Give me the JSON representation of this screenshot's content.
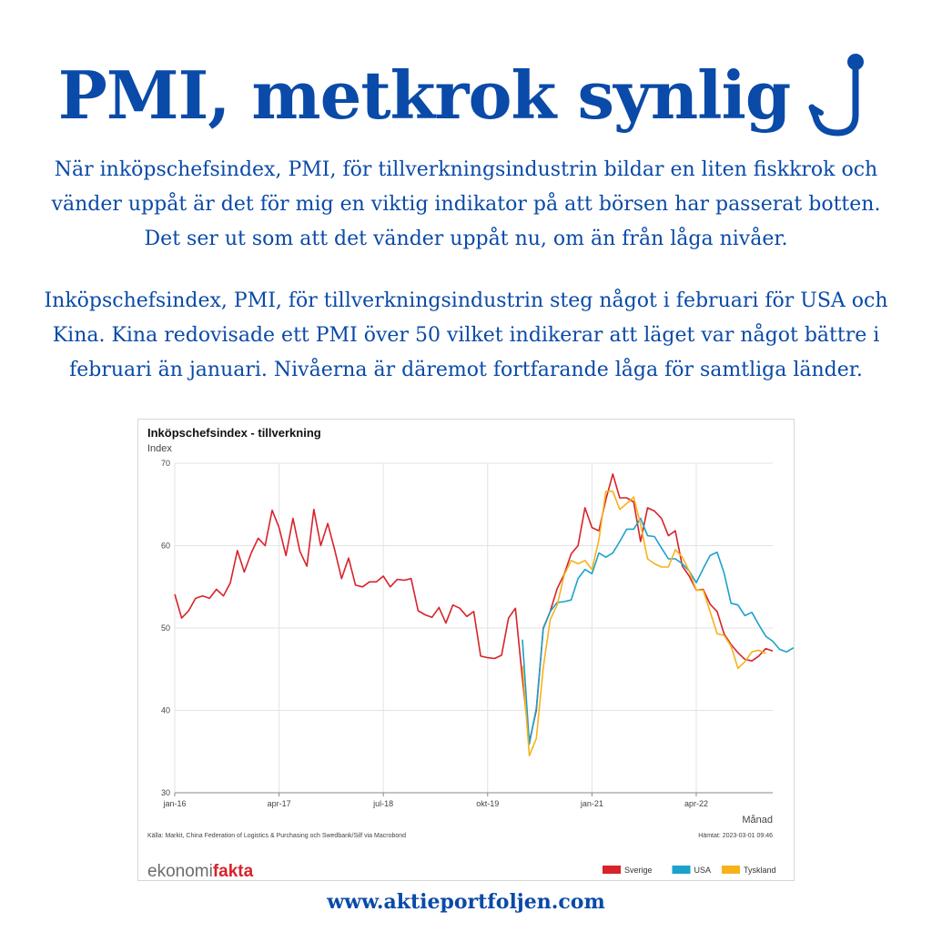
{
  "header": {
    "title": "PMI, metkrok synlig",
    "hook_icon": "fishhook-icon"
  },
  "paragraphs": [
    "När inköpschefsindex, PMI, för tillverkningsindustrin bildar en liten fiskkrok och vänder uppåt är det för mig en viktig indikator på att börsen  har passerat botten. Det ser ut som att det vänder uppåt nu, om än från låga nivåer.",
    "Inköpschefsindex, PMI, för tillverkningsindustrin steg något i februari för USA och Kina. Kina redovisade ett PMI över 50 vilket indikerar att läget var något bättre i februari än januari. Nivåerna är däremot fortfarande låga för samtliga länder."
  ],
  "chart_data": {
    "type": "line",
    "title": "Inköpschefsindex - tillverkning",
    "ylabel": "Index",
    "xlabel": "Månad",
    "ylim": [
      30,
      70
    ],
    "yticks": [
      "30",
      "40",
      "50",
      "60",
      "70"
    ],
    "xticks": [
      {
        "label": "jan-16",
        "index": 0
      },
      {
        "label": "apr-17",
        "index": 15
      },
      {
        "label": "jul-18",
        "index": 30
      },
      {
        "label": "okt-19",
        "index": 45
      },
      {
        "label": "jan-21",
        "index": 60
      },
      {
        "label": "apr-22",
        "index": 75
      }
    ],
    "grid": true,
    "legend_position": "bottom-right",
    "start_month": "jan-16",
    "n_months": 87,
    "series": [
      {
        "name": "Sverige",
        "color": "#d8232a",
        "start_index": 0,
        "values": [
          54.1,
          51.2,
          52.1,
          53.6,
          53.9,
          53.6,
          54.7,
          53.9,
          55.5,
          59.4,
          56.8,
          59.1,
          60.9,
          60.0,
          64.3,
          62.2,
          58.8,
          63.3,
          59.3,
          57.5,
          64.4,
          60.0,
          62.7,
          59.5,
          56.0,
          58.5,
          55.2,
          55.0,
          55.6,
          55.6,
          56.3,
          55.0,
          55.9,
          55.8,
          56.0,
          52.1,
          51.6,
          51.3,
          52.5,
          50.6,
          52.8,
          52.4,
          51.4,
          52.0,
          46.6,
          46.4,
          46.3,
          46.7,
          51.2,
          52.4,
          43.8,
          36.2,
          40.0,
          50.0,
          52.0,
          54.8,
          56.5,
          59.0,
          60.0,
          64.6,
          62.2,
          61.8,
          65.6,
          68.7,
          65.8,
          65.8,
          65.3,
          60.5,
          64.6,
          64.2,
          63.3,
          61.2,
          61.8,
          57.5,
          56.3,
          54.6,
          54.7,
          52.9,
          52.0,
          49.3,
          48.0,
          47.0,
          46.2,
          46.0,
          46.6,
          47.5,
          47.2
        ]
      },
      {
        "name": "USA",
        "color": "#1aa2cc",
        "start_index": 50,
        "values": [
          48.6,
          35.9,
          40.3,
          49.9,
          52.0,
          53.1,
          53.2,
          53.4,
          56.0,
          57.1,
          56.6,
          59.1,
          58.6,
          59.1,
          60.5,
          62.0,
          62.0,
          63.3,
          61.2,
          61.1,
          59.7,
          58.4,
          58.4,
          57.8,
          56.9,
          55.5,
          57.2,
          58.8,
          59.2,
          56.7,
          53.0,
          52.8,
          51.5,
          51.9,
          50.4,
          49.0,
          48.4,
          47.4,
          47.1,
          47.6
        ]
      },
      {
        "name": "Tyskland",
        "color": "#f6b21b",
        "start_index": 50,
        "values": [
          45.4,
          34.5,
          36.6,
          45.2,
          51.0,
          52.8,
          56.4,
          58.2,
          57.8,
          58.2,
          57.1,
          60.7,
          66.6,
          66.6,
          64.4,
          65.1,
          65.9,
          62.6,
          58.4,
          57.8,
          57.4,
          57.4,
          59.5,
          58.6,
          56.9,
          54.6,
          54.6,
          52.0,
          49.3,
          49.1,
          47.8,
          45.1,
          45.9,
          47.1,
          47.3,
          46.9
        ]
      }
    ],
    "source": "Källa: Markit, China Federation of Logistics & Purchasing och Swedbank/Silf via Macrobond",
    "retrieved": "Hämtat: 2023-03-01 09:46",
    "brand": {
      "part1": "ekonomi",
      "part2": "fakta"
    }
  },
  "footer": {
    "url": "www.aktieportfoljen.com"
  },
  "colors": {
    "primary_blue": "#0a4aa8",
    "brand_red": "#d8232a",
    "brand_gray": "#6d6d6d",
    "grid": "#e3e3e3"
  }
}
